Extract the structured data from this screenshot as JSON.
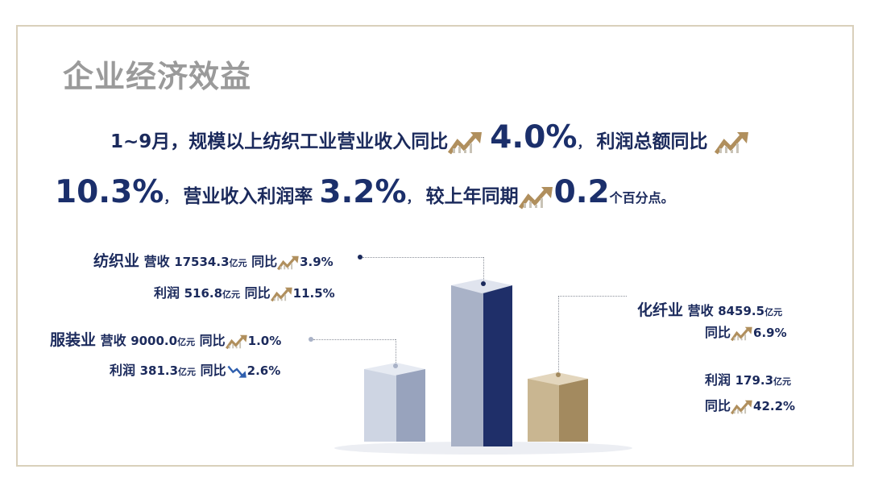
{
  "title": "企业经济效益",
  "summary": {
    "l1_a": "1~9月，规模以上纺织工业营业收入同比",
    "l1_rev_growth": "4.0%",
    "l1_b": "，",
    "l1_c": "利润总额同比",
    "l2_profit_growth": "10.3%",
    "l2_a": "，",
    "l2_b": "营业收入利润率",
    "l2_margin": "3.2%",
    "l2_c": "，",
    "l2_d": "较上年同期",
    "l2_pp": "0.2",
    "l2_pp_unit": "个百分点。"
  },
  "sectors": {
    "textile": {
      "name": "纺织业",
      "rev_label": "营收",
      "rev_value": "17534.3",
      "unit": "亿元",
      "yoy_label": "同比",
      "rev_yoy": "3.9%",
      "profit_label": "利润",
      "profit_value": "516.8",
      "profit_yoy": "11.5%"
    },
    "apparel": {
      "name": "服装业",
      "rev_label": "营收",
      "rev_value": "9000.0",
      "unit": "亿元",
      "yoy_label": "同比",
      "rev_yoy": "1.0%",
      "profit_label": "利润",
      "profit_value": "381.3",
      "profit_yoy": "2.6%"
    },
    "chemfiber": {
      "name": "化纤业",
      "rev_label": "营收",
      "rev_value": "8459.5",
      "unit": "亿元",
      "yoy_label": "同比",
      "rev_yoy": "6.9%",
      "profit_label": "利润",
      "profit_value": "179.3",
      "profit_yoy": "42.2%"
    }
  },
  "colors": {
    "navy": "#1b2a5c",
    "apparel_bar": "#aab3c6",
    "textile_bar": "#1f2f69",
    "chemfiber_bar": "#b6a27c",
    "arrow_up": "#b08f5d",
    "arrow_down": "#2f5fae"
  },
  "icons": [
    "trend-up-icon",
    "trend-down-icon"
  ]
}
